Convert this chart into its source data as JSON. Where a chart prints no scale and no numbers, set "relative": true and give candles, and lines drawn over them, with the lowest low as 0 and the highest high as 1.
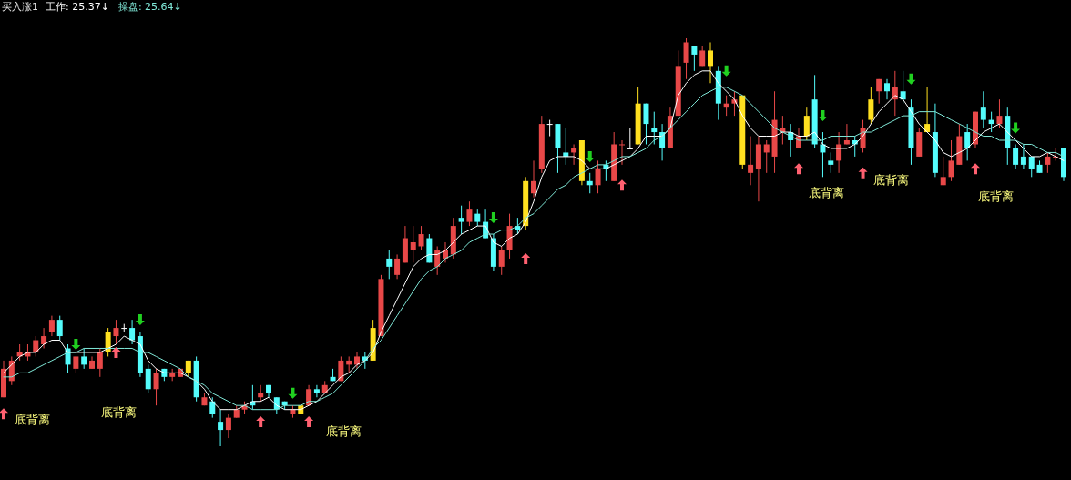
{
  "chart_data": {
    "type": "candlestick",
    "title": "买入涨1",
    "relative": true,
    "categories": [
      null,
      null,
      null,
      null,
      null,
      null,
      null,
      null,
      null,
      null,
      null,
      null,
      null,
      null,
      null,
      null,
      null,
      null,
      null,
      null,
      null,
      null,
      null,
      null,
      null,
      null,
      null,
      null,
      null,
      null,
      null,
      null,
      null,
      null,
      null,
      null,
      null,
      null,
      null,
      null,
      null,
      null,
      null,
      null,
      null,
      null,
      null,
      null,
      null,
      null,
      null,
      null,
      null,
      null,
      null,
      null,
      null,
      null,
      null,
      null,
      null,
      null,
      null,
      null,
      null,
      null,
      null,
      null,
      null,
      null,
      null,
      null,
      null,
      null,
      null,
      null,
      null,
      null,
      null,
      null,
      null,
      null,
      null,
      null,
      null,
      null,
      null,
      null,
      null,
      null,
      null,
      null,
      null,
      null,
      null,
      null,
      null,
      null,
      null,
      null,
      null,
      null,
      null,
      null,
      null,
      null,
      null,
      null,
      null,
      null,
      null,
      null,
      null,
      null,
      null,
      null,
      null,
      null,
      null,
      null,
      null,
      null,
      null,
      null,
      null,
      null,
      null,
      null,
      null,
      null,
      null,
      null,
      null
    ],
    "ohlc": [
      [
        0.12,
        0.21,
        0.12,
        0.19
      ],
      [
        0.16,
        0.22,
        0.15,
        0.21
      ],
      [
        0.22,
        0.25,
        0.21,
        0.23
      ],
      [
        0.22,
        0.25,
        0.21,
        0.23
      ],
      [
        0.23,
        0.27,
        0.22,
        0.26
      ],
      [
        0.25,
        0.29,
        0.24,
        0.27
      ],
      [
        0.28,
        0.32,
        0.27,
        0.31
      ],
      [
        0.31,
        0.32,
        0.26,
        0.27
      ],
      [
        0.24,
        0.25,
        0.18,
        0.2
      ],
      [
        0.19,
        0.22,
        0.18,
        0.22
      ],
      [
        0.22,
        0.24,
        0.19,
        0.2
      ],
      [
        0.19,
        0.22,
        0.19,
        0.21
      ],
      [
        0.19,
        0.24,
        0.17,
        0.23
      ],
      [
        0.23,
        0.29,
        0.22,
        0.28
      ],
      [
        0.27,
        0.31,
        0.25,
        0.29
      ],
      [
        0.29,
        0.3,
        0.28,
        0.29
      ],
      [
        0.29,
        0.31,
        0.25,
        0.26
      ],
      [
        0.27,
        0.28,
        0.17,
        0.18
      ],
      [
        0.19,
        0.2,
        0.13,
        0.14
      ],
      [
        0.14,
        0.19,
        0.1,
        0.18
      ],
      [
        0.19,
        0.19,
        0.16,
        0.17
      ],
      [
        0.17,
        0.19,
        0.16,
        0.18
      ],
      [
        0.17,
        0.19,
        0.17,
        0.19
      ],
      [
        0.18,
        0.21,
        0.17,
        0.21
      ],
      [
        0.21,
        0.22,
        0.11,
        0.12
      ],
      [
        0.1,
        0.13,
        0.1,
        0.12
      ],
      [
        0.11,
        0.12,
        0.07,
        0.08
      ],
      [
        0.06,
        0.09,
        0,
        0.04
      ],
      [
        0.04,
        0.08,
        0.02,
        0.07
      ],
      [
        0.07,
        0.1,
        0.07,
        0.09
      ],
      [
        0.09,
        0.11,
        0.08,
        0.1
      ],
      [
        0.11,
        0.15,
        0.09,
        0.1
      ],
      [
        0.12,
        0.15,
        0.11,
        0.13
      ],
      [
        0.15,
        0.15,
        0.12,
        0.13
      ],
      [
        0.12,
        0.12,
        0.08,
        0.09
      ],
      [
        0.11,
        0.11,
        0.09,
        0.1
      ],
      [
        0.08,
        0.1,
        0.07,
        0.09
      ],
      [
        0.1,
        0.1,
        0.08,
        0.08
      ],
      [
        0.1,
        0.15,
        0.1,
        0.14
      ],
      [
        0.14,
        0.15,
        0.12,
        0.13
      ],
      [
        0.13,
        0.16,
        0.13,
        0.15
      ],
      [
        0.17,
        0.19,
        0.16,
        0.16
      ],
      [
        0.16,
        0.22,
        0.16,
        0.21
      ],
      [
        0.2,
        0.22,
        0.18,
        0.21
      ],
      [
        0.2,
        0.23,
        0.19,
        0.22
      ],
      [
        0.22,
        0.23,
        0.19,
        0.21
      ],
      [
        0.21,
        0.31,
        0.21,
        0.29
      ],
      [
        0.27,
        0.42,
        0.27,
        0.41
      ],
      [
        0.46,
        0.48,
        0.41,
        0.44
      ],
      [
        0.42,
        0.47,
        0.41,
        0.46
      ],
      [
        0.45,
        0.54,
        0.45,
        0.51
      ],
      [
        0.48,
        0.54,
        0.45,
        0.5
      ],
      [
        0.49,
        0.54,
        0.48,
        0.52
      ],
      [
        0.51,
        0.52,
        0.45,
        0.45
      ],
      [
        0.44,
        0.49,
        0.42,
        0.48
      ],
      [
        0.46,
        0.5,
        0.45,
        0.48
      ],
      [
        0.47,
        0.56,
        0.46,
        0.54
      ],
      [
        0.56,
        0.59,
        0.52,
        0.55
      ],
      [
        0.55,
        0.6,
        0.54,
        0.58
      ],
      [
        0.57,
        0.58,
        0.54,
        0.55
      ],
      [
        0.55,
        0.58,
        0.51,
        0.51
      ],
      [
        0.51,
        0.52,
        0.43,
        0.44
      ],
      [
        0.44,
        0.49,
        0.42,
        0.48
      ],
      [
        0.48,
        0.57,
        0.46,
        0.54
      ],
      [
        0.54,
        0.56,
        0.52,
        0.53
      ],
      [
        0.54,
        0.66,
        0.53,
        0.65
      ],
      [
        0.62,
        0.7,
        0.61,
        0.65
      ],
      [
        0.68,
        0.81,
        0.67,
        0.79
      ],
      [
        0.79,
        0.8,
        0.76,
        0.79
      ],
      [
        0.79,
        0.79,
        0.67,
        0.73
      ],
      [
        0.72,
        0.78,
        0.69,
        0.71
      ],
      [
        0.72,
        0.74,
        0.69,
        0.73
      ],
      [
        0.75,
        0.75,
        0.64,
        0.65
      ],
      [
        0.65,
        0.67,
        0.62,
        0.64
      ],
      [
        0.64,
        0.7,
        0.62,
        0.68
      ],
      [
        0.69,
        0.7,
        0.65,
        0.68
      ],
      [
        0.65,
        0.77,
        0.65,
        0.74
      ],
      [
        0.74,
        0.75,
        0.69,
        0.74
      ],
      [
        0.73,
        0.78,
        0.73,
        0.73
      ],
      [
        0.74,
        0.88,
        0.74,
        0.84
      ],
      [
        0.84,
        0.84,
        0.74,
        0.79
      ],
      [
        0.78,
        0.82,
        0.74,
        0.77
      ],
      [
        0.77,
        0.79,
        0.7,
        0.73
      ],
      [
        0.73,
        0.83,
        0.73,
        0.81
      ],
      [
        0.81,
        0.97,
        0.81,
        0.93
      ],
      [
        0.94,
        1,
        0.9,
        0.99
      ],
      [
        0.98,
        0.98,
        0.92,
        0.96
      ],
      [
        0.93,
        0.98,
        0.93,
        0.97
      ],
      [
        0.97,
        0.99,
        0.89,
        0.93
      ],
      [
        0.92,
        0.93,
        0.8,
        0.84
      ],
      [
        0.83,
        0.86,
        0.81,
        0.84
      ],
      [
        0.84,
        0.87,
        0.81,
        0.85
      ],
      [
        0.86,
        0.86,
        0.68,
        0.69
      ],
      [
        0.67,
        0.76,
        0.64,
        0.69
      ],
      [
        0.68,
        0.76,
        0.6,
        0.74
      ],
      [
        0.72,
        0.75,
        0.67,
        0.74
      ],
      [
        0.71,
        0.87,
        0.67,
        0.8
      ],
      [
        0.77,
        0.81,
        0.74,
        0.78
      ],
      [
        0.77,
        0.79,
        0.71,
        0.75
      ],
      [
        0.73,
        0.78,
        0.73,
        0.76
      ],
      [
        0.76,
        0.83,
        0.75,
        0.81
      ],
      [
        0.85,
        0.91,
        0.73,
        0.74
      ],
      [
        0.74,
        0.77,
        0.66,
        0.72
      ],
      [
        0.7,
        0.72,
        0.67,
        0.69
      ],
      [
        0.7,
        0.77,
        0.67,
        0.74
      ],
      [
        0.74,
        0.79,
        0.74,
        0.75
      ],
      [
        0.75,
        0.76,
        0.71,
        0.74
      ],
      [
        0.73,
        0.8,
        0.72,
        0.78
      ],
      [
        0.8,
        0.88,
        0.79,
        0.85
      ],
      [
        0.87,
        0.9,
        0.84,
        0.9
      ],
      [
        0.89,
        0.9,
        0.85,
        0.87
      ],
      [
        0.85,
        0.92,
        0.81,
        0.88
      ],
      [
        0.87,
        0.92,
        0.84,
        0.85
      ],
      [
        0.83,
        0.85,
        0.69,
        0.73
      ],
      [
        0.71,
        0.78,
        0.71,
        0.77
      ],
      [
        0.79,
        0.88,
        0.77,
        0.77
      ],
      [
        0.77,
        0.84,
        0.66,
        0.67
      ],
      [
        0.64,
        0.71,
        0.64,
        0.66
      ],
      [
        0.66,
        0.75,
        0.65,
        0.7
      ],
      [
        0.69,
        0.79,
        0.69,
        0.76
      ],
      [
        0.77,
        0.79,
        0.7,
        0.73
      ],
      [
        0.74,
        0.82,
        0.73,
        0.82
      ],
      [
        0.83,
        0.87,
        0.78,
        0.8
      ],
      [
        0.8,
        0.82,
        0.77,
        0.79
      ],
      [
        0.79,
        0.85,
        0.78,
        0.81
      ],
      [
        0.81,
        0.83,
        0.69,
        0.73
      ],
      [
        0.73,
        0.74,
        0.68,
        0.69
      ],
      [
        0.71,
        0.74,
        0.68,
        0.69
      ],
      [
        0.71,
        0.71,
        0.66,
        0.68
      ],
      [
        0.69,
        0.7,
        0.67,
        0.67
      ],
      [
        0.69,
        0.72,
        0.67,
        0.71
      ],
      [
        0.71,
        0.73,
        0.7,
        0.71
      ],
      [
        0.73,
        0.73,
        0.65,
        0.66
      ]
    ],
    "colors": [
      "#e84848",
      "#e84848",
      "#e84848",
      "#e84848",
      "#e84848",
      "#e84848",
      "#e84848",
      "#54fcfc",
      "#54fcfc",
      "#e84848",
      "#54fcfc",
      "#e84848",
      "#e84848",
      "#ffe020",
      "#e84848",
      "#ffffff",
      "#54fcfc",
      "#54fcfc",
      "#54fcfc",
      "#e84848",
      "#54fcfc",
      "#e84848",
      "#e84848",
      "#ffe020",
      "#54fcfc",
      "#e84848",
      "#54fcfc",
      "#54fcfc",
      "#e84848",
      "#e84848",
      "#e84848",
      "#54fcfc",
      "#e84848",
      "#54fcfc",
      "#54fcfc",
      "#54fcfc",
      "#e84848",
      "#ffe020",
      "#e84848",
      "#54fcfc",
      "#e84848",
      "#54fcfc",
      "#e84848",
      "#e84848",
      "#e84848",
      "#54fcfc",
      "#ffe020",
      "#e84848",
      "#54fcfc",
      "#e84848",
      "#e84848",
      "#e84848",
      "#e84848",
      "#54fcfc",
      "#e84848",
      "#e84848",
      "#e84848",
      "#54fcfc",
      "#e84848",
      "#54fcfc",
      "#54fcfc",
      "#54fcfc",
      "#e84848",
      "#e84848",
      "#54fcfc",
      "#ffe020",
      "#e84848",
      "#e84848",
      "#ffffff",
      "#54fcfc",
      "#54fcfc",
      "#e84848",
      "#ffe020",
      "#54fcfc",
      "#e84848",
      "#54fcfc",
      "#e84848",
      "#e84848",
      "#ffffff",
      "#ffe020",
      "#54fcfc",
      "#54fcfc",
      "#54fcfc",
      "#e84848",
      "#e84848",
      "#e84848",
      "#54fcfc",
      "#e84848",
      "#ffe020",
      "#54fcfc",
      "#e84848",
      "#e84848",
      "#ffe020",
      "#e84848",
      "#e84848",
      "#e84848",
      "#e84848",
      "#e84848",
      "#54fcfc",
      "#e84848",
      "#ffe020",
      "#54fcfc",
      "#54fcfc",
      "#54fcfc",
      "#e84848",
      "#e84848",
      "#54fcfc",
      "#e84848",
      "#ffe020",
      "#e84848",
      "#54fcfc",
      "#e84848",
      "#54fcfc",
      "#54fcfc",
      "#e84848",
      "#ffe020",
      "#54fcfc",
      "#e84848",
      "#e84848",
      "#e84848",
      "#54fcfc",
      "#e84848",
      "#54fcfc",
      "#54fcfc",
      "#e84848",
      "#54fcfc",
      "#54fcfc",
      "#54fcfc",
      "#54fcfc",
      "#54fcfc",
      "#e84848",
      "#e84848",
      "#54fcfc"
    ],
    "series": [
      {
        "name": "工作: 25.37↓",
        "type": "line",
        "color": "#ffffff",
        "values": [
          0.18,
          0.2,
          0.22,
          0.23,
          0.23,
          0.25,
          0.26,
          0.26,
          0.23,
          0.23,
          0.23,
          0.23,
          0.23,
          0.24,
          0.25,
          0.27,
          0.26,
          0.25,
          0.21,
          0.19,
          0.18,
          0.18,
          0.18,
          0.17,
          0.16,
          0.14,
          0.11,
          0.09,
          0.09,
          0.09,
          0.1,
          0.11,
          0.11,
          0.12,
          0.1,
          0.09,
          0.09,
          0.09,
          0.1,
          0.11,
          0.13,
          0.15,
          0.17,
          0.18,
          0.2,
          0.21,
          0.23,
          0.28,
          0.32,
          0.36,
          0.4,
          0.44,
          0.46,
          0.47,
          0.47,
          0.48,
          0.5,
          0.52,
          0.53,
          0.54,
          0.54,
          0.5,
          0.49,
          0.51,
          0.52,
          0.55,
          0.6,
          0.66,
          0.7,
          0.71,
          0.71,
          0.71,
          0.7,
          0.68,
          0.68,
          0.68,
          0.69,
          0.7,
          0.71,
          0.73,
          0.76,
          0.76,
          0.76,
          0.78,
          0.86,
          0.89,
          0.91,
          0.92,
          0.92,
          0.89,
          0.87,
          0.85,
          0.81,
          0.78,
          0.76,
          0.76,
          0.76,
          0.77,
          0.77,
          0.76,
          0.76,
          0.77,
          0.74,
          0.73,
          0.73,
          0.73,
          0.74,
          0.76,
          0.79,
          0.82,
          0.84,
          0.86,
          0.85,
          0.82,
          0.79,
          0.77,
          0.75,
          0.72,
          0.71,
          0.72,
          0.73,
          0.75,
          0.77,
          0.78,
          0.79,
          0.77,
          0.75,
          0.73,
          0.71,
          0.71,
          0.72,
          0.71,
          0.7
        ]
      },
      {
        "name": "操盘: 25.64↓",
        "type": "line",
        "color": "#80e8d8",
        "values": [
          0.17,
          0.17,
          0.18,
          0.18,
          0.19,
          0.2,
          0.21,
          0.22,
          0.23,
          0.23,
          0.24,
          0.24,
          0.24,
          0.24,
          0.24,
          0.24,
          0.24,
          0.23,
          0.23,
          0.22,
          0.21,
          0.2,
          0.19,
          0.17,
          0.16,
          0.15,
          0.13,
          0.12,
          0.11,
          0.1,
          0.1,
          0.09,
          0.09,
          0.09,
          0.09,
          0.1,
          0.1,
          0.1,
          0.11,
          0.11,
          0.12,
          0.13,
          0.15,
          0.17,
          0.19,
          0.21,
          0.24,
          0.26,
          0.29,
          0.32,
          0.35,
          0.38,
          0.41,
          0.43,
          0.44,
          0.46,
          0.47,
          0.48,
          0.5,
          0.51,
          0.52,
          0.52,
          0.53,
          0.53,
          0.54,
          0.56,
          0.57,
          0.59,
          0.61,
          0.63,
          0.64,
          0.66,
          0.67,
          0.68,
          0.69,
          0.69,
          0.7,
          0.71,
          0.71,
          0.72,
          0.73,
          0.75,
          0.76,
          0.78,
          0.8,
          0.82,
          0.84,
          0.86,
          0.87,
          0.88,
          0.88,
          0.87,
          0.86,
          0.84,
          0.82,
          0.8,
          0.78,
          0.77,
          0.76,
          0.75,
          0.75,
          0.75,
          0.75,
          0.76,
          0.76,
          0.76,
          0.76,
          0.77,
          0.77,
          0.78,
          0.79,
          0.8,
          0.81,
          0.81,
          0.82,
          0.82,
          0.82,
          0.81,
          0.8,
          0.79,
          0.78,
          0.77,
          0.76,
          0.76,
          0.75,
          0.75,
          0.75,
          0.74,
          0.74,
          0.73,
          0.72,
          0.72,
          0.71
        ]
      },
      {
        "type": "scatter",
        "marker": "triangle",
        "color": "#ff6070",
        "values": [
          0.08,
          null,
          null,
          null,
          null,
          null,
          null,
          null,
          null,
          null,
          null,
          null,
          null,
          null,
          0.23,
          null,
          null,
          null,
          null,
          null,
          null,
          null,
          null,
          null,
          null,
          null,
          null,
          null,
          null,
          null,
          null,
          null,
          0.06,
          null,
          null,
          null,
          null,
          null,
          0.06,
          null,
          null,
          null,
          null,
          null,
          null,
          null,
          null,
          null,
          null,
          null,
          null,
          null,
          null,
          null,
          null,
          null,
          null,
          null,
          null,
          null,
          null,
          null,
          null,
          null,
          null,
          0.46,
          null,
          null,
          null,
          null,
          null,
          null,
          null,
          null,
          null,
          null,
          null,
          0.64,
          null,
          null,
          null,
          null,
          null,
          null,
          null,
          null,
          null,
          null,
          null,
          null,
          null,
          null,
          null,
          null,
          null,
          null,
          null,
          null,
          null,
          0.68,
          null,
          null,
          null,
          null,
          null,
          null,
          null,
          0.67,
          null,
          null,
          null,
          null,
          null,
          null,
          null,
          null,
          null,
          null,
          null,
          null,
          null,
          0.68,
          null,
          null,
          null,
          null,
          null,
          null,
          null,
          null,
          null,
          null,
          null
        ]
      },
      {
        "type": "scatter",
        "marker": "triangle",
        "color": "#20d020",
        "values": [
          null,
          null,
          null,
          null,
          null,
          null,
          null,
          null,
          null,
          0.25,
          null,
          null,
          null,
          null,
          null,
          null,
          null,
          0.31,
          null,
          null,
          null,
          null,
          null,
          null,
          null,
          null,
          null,
          null,
          null,
          null,
          null,
          null,
          null,
          null,
          null,
          null,
          0.13,
          null,
          null,
          null,
          null,
          null,
          null,
          null,
          null,
          null,
          null,
          null,
          null,
          null,
          null,
          null,
          null,
          null,
          null,
          null,
          null,
          null,
          null,
          null,
          null,
          0.56,
          null,
          null,
          null,
          null,
          null,
          null,
          null,
          null,
          null,
          null,
          null,
          0.71,
          null,
          null,
          null,
          null,
          null,
          null,
          null,
          null,
          null,
          null,
          null,
          null,
          null,
          null,
          null,
          null,
          0.92,
          null,
          null,
          null,
          null,
          null,
          null,
          null,
          null,
          null,
          null,
          null,
          0.81,
          null,
          null,
          null,
          null,
          null,
          null,
          null,
          null,
          null,
          null,
          0.9,
          null,
          null,
          null,
          null,
          null,
          null,
          null,
          null,
          null,
          null,
          null,
          null,
          0.78,
          null,
          null,
          null,
          null,
          null,
          null
        ]
      }
    ],
    "annotations": [
      "底背离",
      "底背离",
      "底背离",
      "底背离",
      "底背离",
      "底背离"
    ]
  }
}
